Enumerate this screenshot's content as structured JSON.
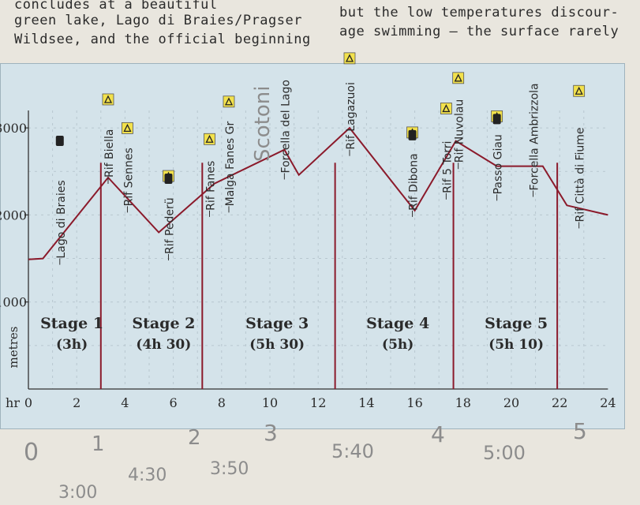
{
  "page_text": {
    "left_lines": [
      "concludes at a beautiful",
      "green lake, Lago di Braies/Pragser",
      "Wildsee, and the official beginning"
    ],
    "right_lines": [
      "but the low temperatures discour-",
      "age swimming – the surface rarely"
    ]
  },
  "chart_data": {
    "type": "line",
    "ylabel": "metres",
    "xlabel": "hr",
    "xlim": [
      0,
      24
    ],
    "ylim": [
      0,
      3200
    ],
    "x_ticks": [
      "0",
      "2",
      "4",
      "6",
      "8",
      "10",
      "12",
      "14",
      "16",
      "18",
      "20",
      "22",
      "24"
    ],
    "y_ticks": [
      "1000",
      "2000",
      "3000"
    ],
    "grid": true,
    "series": [
      {
        "x": [
          0,
          0.6,
          3.3,
          5.4,
          7.7,
          10.6,
          11.2,
          13.3,
          16.0,
          17.7,
          19.4,
          21.3,
          22.3,
          24.0
        ],
        "y": [
          1490,
          1500,
          2430,
          1800,
          2360,
          2750,
          2460,
          3000,
          2050,
          2850,
          2560,
          2560,
          2110,
          2000
        ]
      }
    ],
    "stage_dividers": [
      3.0,
      7.2,
      12.7,
      17.6,
      21.9
    ],
    "points": [
      {
        "label": "Lago di Braies",
        "x": 1.3,
        "y": 1500,
        "icon": "bus"
      },
      {
        "label": "Rif Biella",
        "x": 3.3,
        "y": 2430,
        "icon": "hut"
      },
      {
        "label": "Rif Sennes",
        "x": 4.1,
        "y": 2100,
        "icon": "hut"
      },
      {
        "label": "Rif Pederü",
        "x": 5.8,
        "y": 1550,
        "icon": "hut-bus"
      },
      {
        "label": "Rif Fanes",
        "x": 7.5,
        "y": 2050,
        "icon": "hut"
      },
      {
        "label": "Malga Fanes Gr",
        "x": 8.3,
        "y": 2100,
        "icon": "hut"
      },
      {
        "label": "Forcella del Lago",
        "x": 10.6,
        "y": 2480,
        "icon": "none"
      },
      {
        "label": "Rif Lagazuoi",
        "x": 13.3,
        "y": 2750,
        "icon": "hut"
      },
      {
        "label": "Rif Dibona",
        "x": 15.9,
        "y": 2050,
        "icon": "hut-bus"
      },
      {
        "label": "Rif 5 Torri",
        "x": 17.3,
        "y": 2250,
        "icon": "hut"
      },
      {
        "label": "Rif Nuvolau",
        "x": 17.8,
        "y": 2600,
        "icon": "hut"
      },
      {
        "label": "Passo Giau",
        "x": 19.4,
        "y": 2236,
        "icon": "hut-bus"
      },
      {
        "label": "Forcella Ambrizzola",
        "x": 20.9,
        "y": 2280,
        "icon": "none"
      },
      {
        "label": "Rif Città di Fiume",
        "x": 22.8,
        "y": 1918,
        "icon": "hut"
      }
    ],
    "stages": [
      {
        "name": "Stage 1",
        "time": "(3h)",
        "x": 1.8
      },
      {
        "name": "Stage 2",
        "time": "(4h 30)",
        "x": 5.6
      },
      {
        "name": "Stage 3",
        "time": "(5h 30)",
        "x": 10.3
      },
      {
        "name": "Stage 4",
        "time": "(5h)",
        "x": 15.3
      },
      {
        "name": "Stage 5",
        "time": "(5h 10)",
        "x": 20.2
      }
    ]
  },
  "annotations": {
    "handwritten": [
      "Scotoni",
      "0",
      "1",
      "3:00",
      "4:30",
      "2",
      "3:50",
      "3",
      "5:40",
      "4",
      "5:00",
      "5"
    ]
  },
  "colors": {
    "line": "#8b1a2b",
    "panel": "#d4e3ea",
    "hut_icon": "#f2e14c",
    "grid": "#b8c7cf",
    "text": "#2b2b2b"
  }
}
